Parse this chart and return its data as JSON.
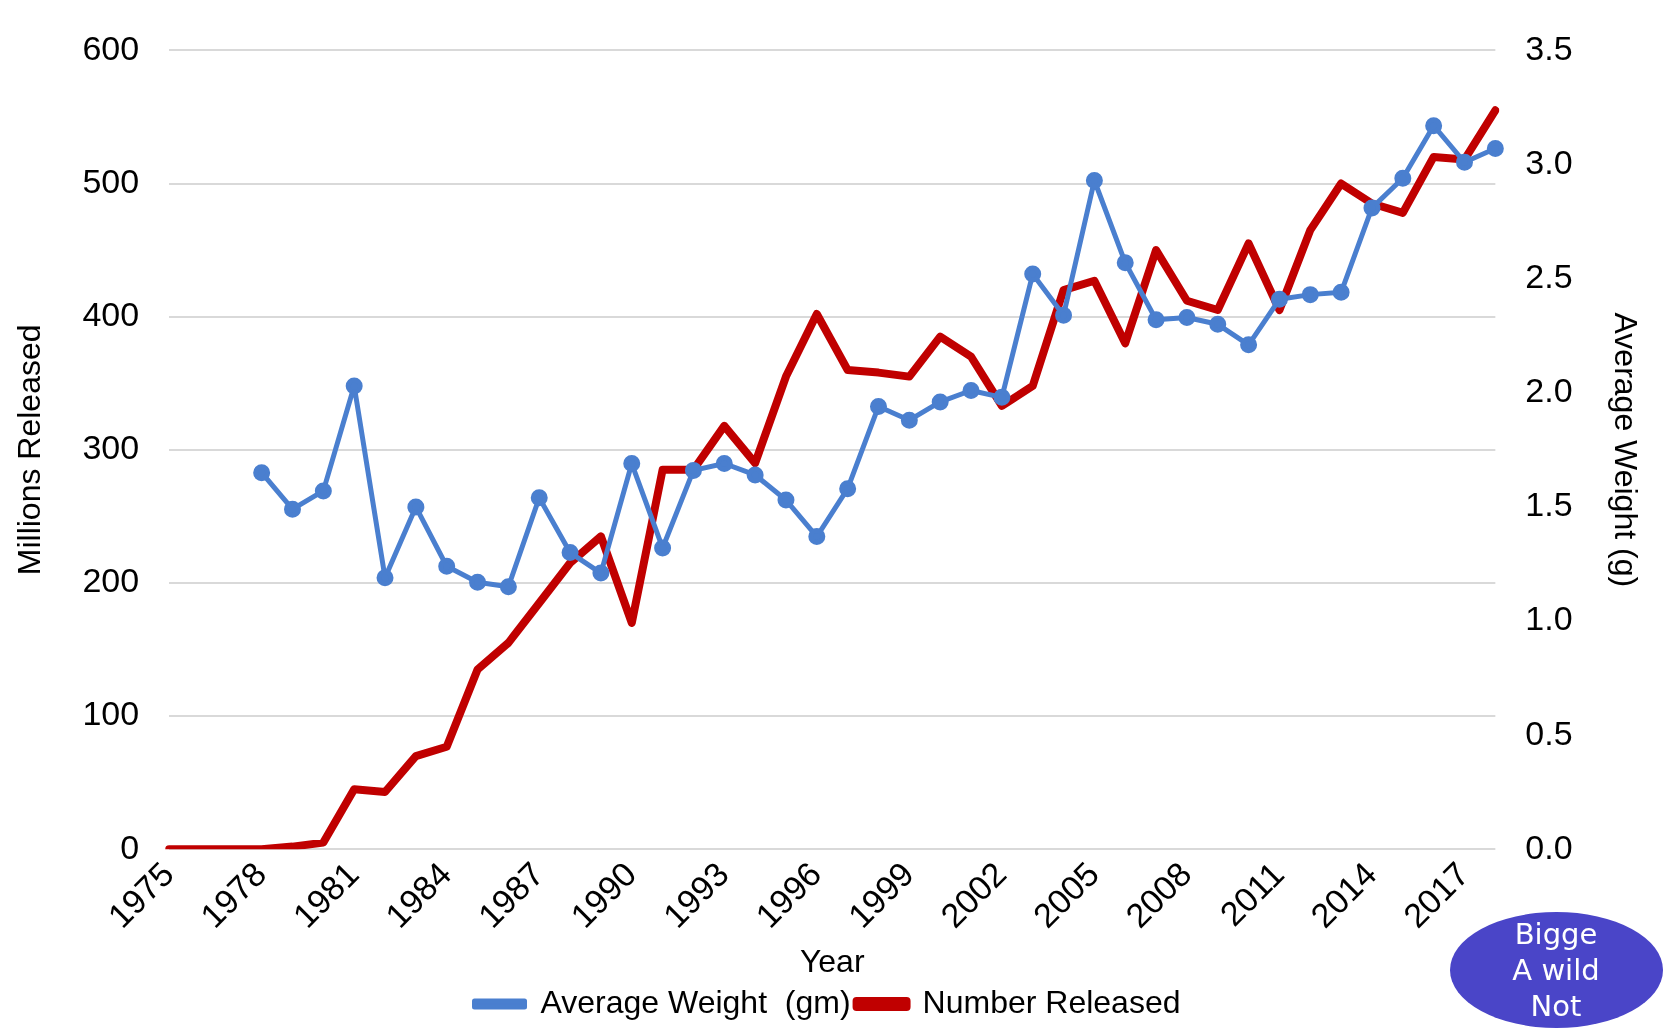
{
  "chart_data": {
    "type": "line",
    "xlabel": "Year",
    "ylabel": "Millions Released",
    "y2label": "Average Weight (g)",
    "categories": [
      "1975",
      null,
      null,
      "1978",
      null,
      null,
      "1981",
      null,
      null,
      "1984",
      null,
      null,
      "1987",
      null,
      null,
      "1990",
      null,
      null,
      "1993",
      null,
      null,
      "1996",
      null,
      null,
      "1999",
      null,
      null,
      "2002",
      null,
      null,
      "2005",
      null,
      null,
      "2008",
      null,
      null,
      "2011",
      null,
      null,
      "2014",
      null,
      null,
      "2017",
      null
    ],
    "series": [
      {
        "name": "Number Released",
        "color": "#c00000",
        "marker": "none",
        "values": [
          0,
          0,
          0,
          0,
          2,
          5,
          45,
          43,
          70,
          77,
          135,
          155,
          185,
          215,
          235,
          170,
          285,
          285,
          318,
          290,
          355,
          402,
          360,
          358,
          355,
          385,
          370,
          333,
          348,
          420,
          427,
          380,
          450,
          412,
          405,
          455,
          405,
          465,
          500,
          485,
          478,
          520,
          518,
          555
        ]
      },
      {
        "name": "Average Weight  (gm)",
        "color": "#4a7fcf",
        "marker": "circle",
        "axis": "y2",
        "values": [
          null,
          null,
          null,
          1.65,
          1.49,
          1.57,
          2.03,
          1.19,
          1.5,
          1.24,
          1.17,
          1.15,
          1.54,
          1.3,
          1.21,
          1.69,
          1.32,
          1.66,
          1.69,
          1.64,
          1.53,
          1.37,
          1.58,
          1.94,
          1.88,
          1.96,
          2.01,
          1.98,
          2.52,
          2.34,
          2.93,
          2.57,
          2.32,
          2.33,
          2.3,
          2.21,
          2.41,
          2.43,
          2.44,
          2.81,
          2.94,
          3.17,
          3.01,
          3.07
        ]
      }
    ],
    "ylim": [
      0,
      600
    ],
    "yticks": [
      0,
      100,
      200,
      300,
      400,
      500,
      600
    ],
    "y2lim": [
      0,
      3.5
    ],
    "y2ticks": [
      {
        "value": 0,
        "label": "0.0"
      },
      0.5,
      {
        "value": 1,
        "label": "1.0"
      },
      1.5,
      {
        "value": 2,
        "label": "2.0"
      },
      2.5,
      {
        "value": 3,
        "label": "3.0"
      },
      3.5
    ],
    "grid": "y",
    "legend": "bottom",
    "annotations": [
      "Bigge",
      "A wild",
      "Not"
    ]
  }
}
